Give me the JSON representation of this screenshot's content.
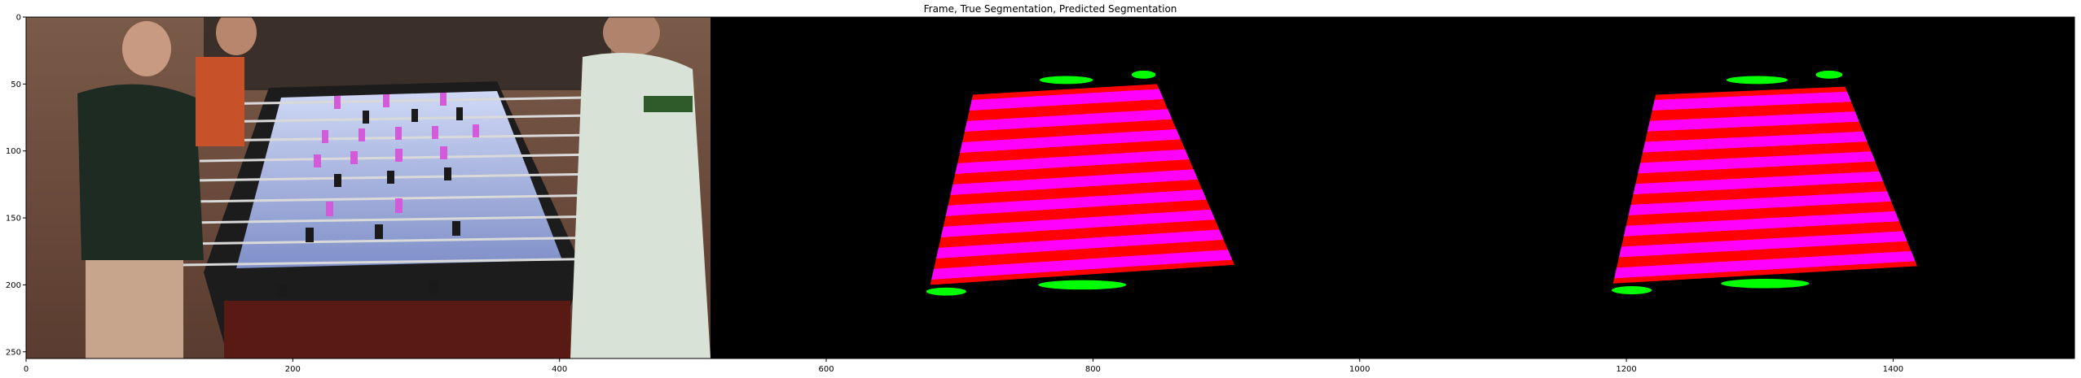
{
  "chart_data": {
    "type": "image",
    "title": "Frame, True Segmentation, Predicted Segmentation",
    "xlim": [
      0,
      1536
    ],
    "ylim": [
      255,
      0
    ],
    "xticks": [
      0,
      200,
      400,
      600,
      800,
      1000,
      1200,
      1400
    ],
    "yticks": [
      0,
      50,
      100,
      150,
      200,
      250
    ],
    "panels": [
      {
        "name": "Frame",
        "x_range": [
          0,
          512
        ],
        "content": "photo-foosball-frame"
      },
      {
        "name": "True Segmentation",
        "x_range": [
          512,
          1024
        ],
        "table": {
          "corners": [
            [
              710,
              58
            ],
            [
              848,
              50
            ],
            [
              906,
              185
            ],
            [
              678,
              200
            ]
          ],
          "color": "#ff0000"
        },
        "rods": {
          "count": 9,
          "color": "#ff00ff"
        },
        "markers": [
          {
            "type": "blob",
            "color": "#00ff00",
            "center": [
              780,
              47
            ],
            "size": [
              40,
              6
            ]
          },
          {
            "type": "blob",
            "color": "#00ff00",
            "center": [
              838,
              43
            ],
            "size": [
              18,
              6
            ]
          },
          {
            "type": "blob",
            "color": "#00ff00",
            "center": [
              690,
              205
            ],
            "size": [
              30,
              6
            ]
          },
          {
            "type": "blob",
            "color": "#00ff00",
            "center": [
              792,
              200
            ],
            "size": [
              66,
              7
            ]
          }
        ]
      },
      {
        "name": "Predicted Segmentation",
        "x_range": [
          1024,
          1536
        ],
        "table": {
          "corners": [
            [
              1222,
              58
            ],
            [
              1364,
              52
            ],
            [
              1418,
              186
            ],
            [
              1190,
              199
            ]
          ],
          "color": "#ff0000"
        },
        "rods": {
          "count": 9,
          "color": "#ff00ff"
        },
        "markers": [
          {
            "type": "blob",
            "color": "#00ff00",
            "center": [
              1298,
              47
            ],
            "size": [
              46,
              6
            ]
          },
          {
            "type": "blob",
            "color": "#00ff00",
            "center": [
              1352,
              43
            ],
            "size": [
              20,
              6
            ]
          },
          {
            "type": "blob",
            "color": "#00ff00",
            "center": [
              1204,
              204
            ],
            "size": [
              30,
              6
            ]
          },
          {
            "type": "blob",
            "color": "#00ff00",
            "center": [
              1304,
              199
            ],
            "size": [
              66,
              7
            ]
          }
        ]
      }
    ]
  }
}
